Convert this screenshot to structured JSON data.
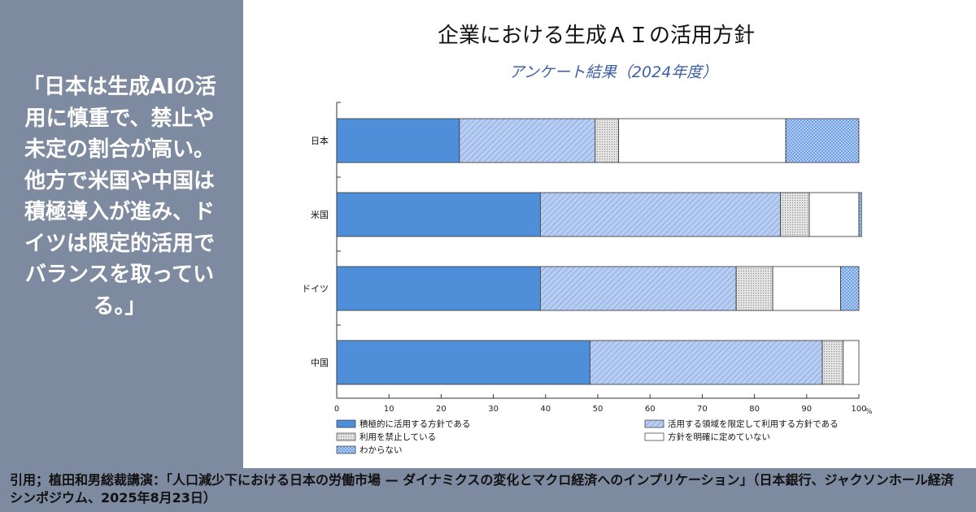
{
  "quote": "「日本は生成AIの活\n用に慎重で、禁止や\n未定の割合が高い。\n他方で米国や中国は\n積極導入が進み、ド\nイツは限定的活用で\nバランスを取ってい\nる。」",
  "citation": "引用；植田和男総裁講演：「人口減少下における日本の労働市場 — ダイナミクスの変化とマクロ経済へのインプリケーション」（日本銀行、ジャクソンホール経済シンポジウム、2025年8月23日）",
  "colors": {
    "sidebar_bg": "#7e8aa0",
    "solid_blue": "#4f8fd9",
    "hatch_blue": "#a9c3ee",
    "banned_gray": "#d9d9d9",
    "undecided_white": "#ffffff",
    "unknown_blue": "#6f9ee6",
    "subtitle_blue": "#3f5fa8"
  },
  "chart_data": {
    "type": "bar",
    "orientation": "horizontal",
    "stacked": true,
    "title": "企業における生成ＡＩの活用方針",
    "subtitle": "アンケート結果（2024年度）",
    "categories": [
      "日本",
      "米国",
      "ドイツ",
      "中国"
    ],
    "series": [
      {
        "name": "積極的に活用する方針である",
        "pattern": "solid",
        "values": [
          23.5,
          39,
          39,
          48.5
        ]
      },
      {
        "name": "活用する領域を限定して利用する方針である",
        "pattern": "hatch",
        "values": [
          26,
          46,
          37.5,
          44.5
        ]
      },
      {
        "name": "利用を禁止している",
        "pattern": "dots",
        "values": [
          4.5,
          5.5,
          7,
          4
        ]
      },
      {
        "name": "方針を明確に定めていない",
        "pattern": "white",
        "values": [
          32,
          9.5,
          13,
          3
        ]
      },
      {
        "name": "わからない",
        "pattern": "cross",
        "values": [
          14,
          0.5,
          3.5,
          0
        ]
      }
    ],
    "xlim": [
      0,
      100
    ],
    "x_ticks": [
      0,
      10,
      20,
      30,
      40,
      50,
      60,
      70,
      80,
      90,
      100
    ],
    "x_unit": "%",
    "xlabel": "",
    "ylabel": "",
    "legend_position": "bottom",
    "grid": false
  }
}
